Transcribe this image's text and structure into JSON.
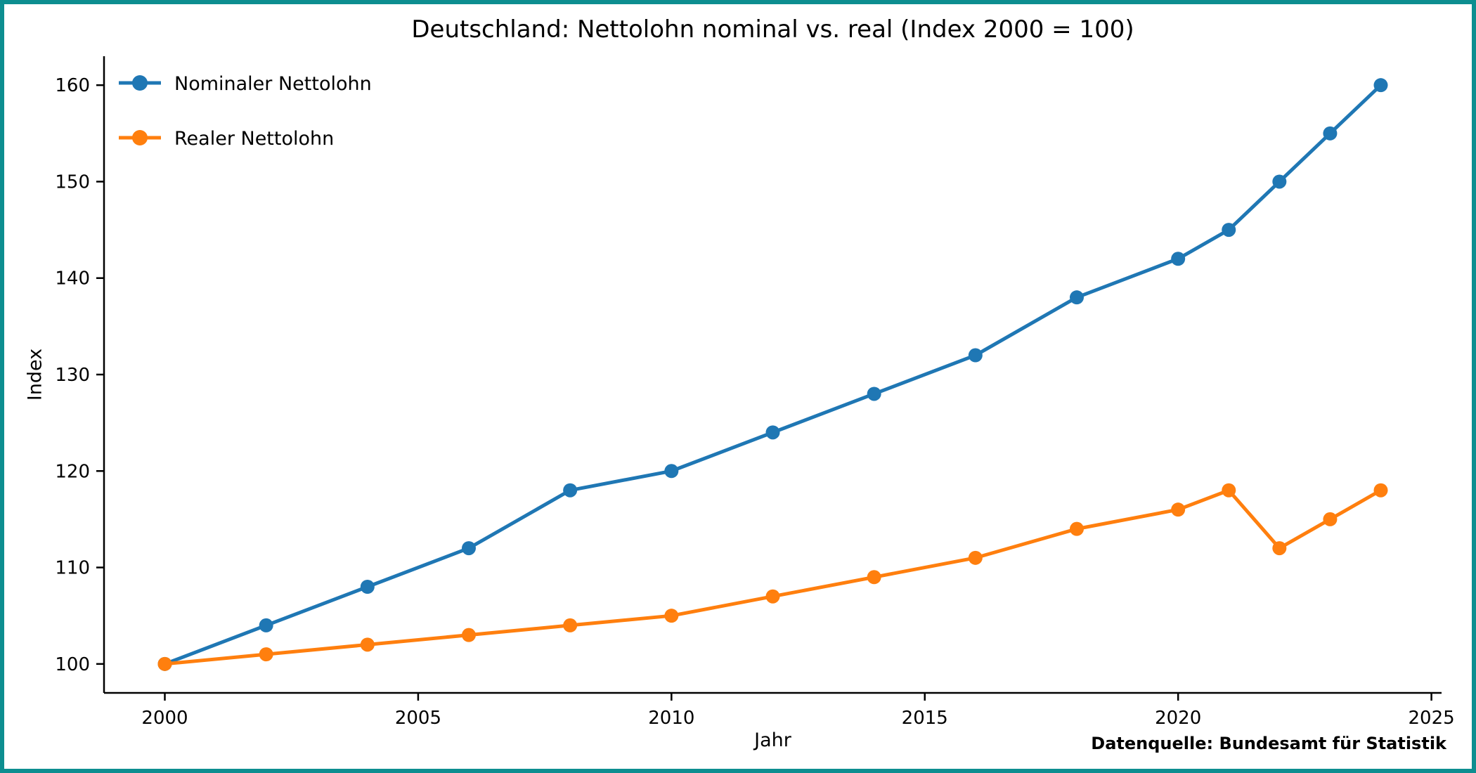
{
  "frame": {
    "border_color": "#0d8e90",
    "background_color": "#ffffff"
  },
  "source_note": "Datenquelle: Bundesamt für Statistik",
  "chart_data": {
    "type": "line",
    "title": "Deutschland: Nettolohn nominal vs. real (Index 2000 = 100)",
    "xlabel": "Jahr",
    "ylabel": "Index",
    "x": [
      2000,
      2002,
      2004,
      2006,
      2008,
      2010,
      2012,
      2014,
      2016,
      2018,
      2020,
      2021,
      2022,
      2023,
      2024
    ],
    "series": [
      {
        "name": "Nominaler Nettolohn",
        "color": "#1f77b4",
        "values": [
          100,
          104,
          108,
          112,
          118,
          120,
          124,
          128,
          132,
          138,
          142,
          145,
          150,
          155,
          160
        ]
      },
      {
        "name": "Realer Nettolohn",
        "color": "#ff7f0e",
        "values": [
          100,
          101,
          102,
          103,
          104,
          105,
          107,
          109,
          111,
          114,
          116,
          118,
          112,
          115,
          118
        ]
      }
    ],
    "xticks": [
      2000,
      2005,
      2010,
      2015,
      2020,
      2025
    ],
    "yticks": [
      100,
      110,
      120,
      130,
      140,
      150,
      160
    ],
    "xlim": [
      1998.8,
      2025.2
    ],
    "ylim": [
      97,
      163
    ],
    "grid": false,
    "legend_position": "upper-left",
    "marker": "circle",
    "axis_color": "#000000",
    "text_color": "#000000"
  }
}
